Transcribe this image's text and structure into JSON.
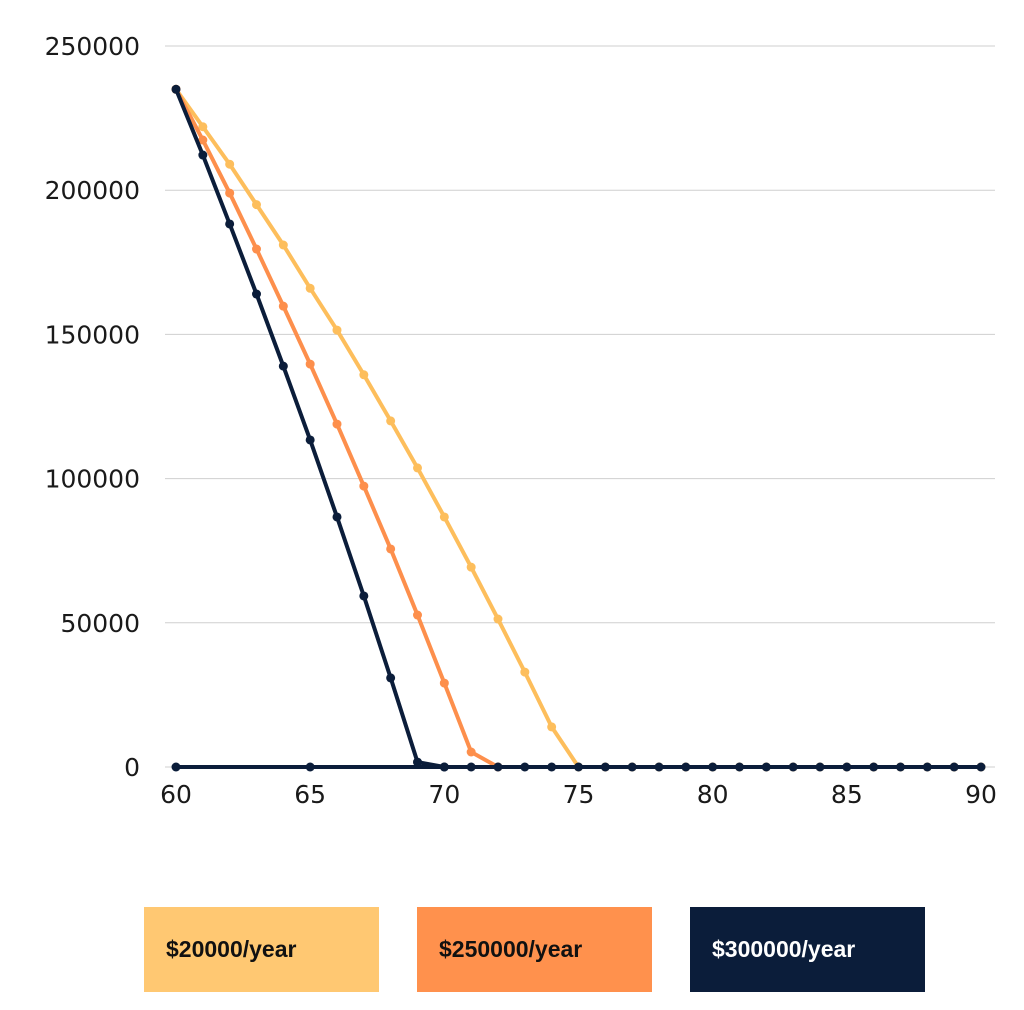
{
  "chart_data": {
    "type": "line",
    "title": "",
    "xlabel": "",
    "ylabel": "",
    "xlim": [
      60,
      90
    ],
    "ylim": [
      0,
      250000
    ],
    "x_ticks": [
      "60",
      "65",
      "70",
      "75",
      "80",
      "85",
      "90"
    ],
    "y_ticks": [
      "0",
      "50000",
      "100000",
      "150000",
      "200000",
      "250000"
    ],
    "grid": "horizontal",
    "legend_placement": "bottom",
    "series": [
      {
        "name": "$20000/year",
        "color": "#FDBE5C",
        "text_color": "#111111",
        "box_color": "#FFC872",
        "x": [
          60,
          61,
          62,
          63,
          64,
          65,
          66,
          67,
          68,
          69,
          70,
          71,
          72,
          73,
          74,
          75,
          76,
          77,
          78,
          79,
          80,
          81,
          82,
          83,
          84,
          85,
          86,
          87,
          88,
          89,
          90
        ],
        "values": [
          235000,
          222000,
          209000,
          195000,
          181000,
          166000,
          151500,
          136000,
          120000,
          103700,
          86700,
          69300,
          51300,
          32900,
          13900,
          0,
          0,
          0,
          0,
          0,
          0,
          0,
          0,
          0,
          0,
          0,
          0,
          0,
          0,
          0,
          0
        ]
      },
      {
        "name": "$250000/year",
        "color": "#FD8F4C",
        "text_color": "#111111",
        "box_color": "#FF914D",
        "x": [
          60,
          61,
          62,
          63,
          64,
          65,
          66,
          67,
          68,
          69,
          70,
          71,
          72
        ],
        "values": [
          235000,
          217400,
          199000,
          179600,
          159800,
          139700,
          118900,
          97400,
          75600,
          52700,
          29100,
          5200,
          0
        ]
      },
      {
        "name": "$300000/year",
        "color": "#0B1D3A",
        "text_color": "#ffffff",
        "box_color": "#0B1D3A",
        "x": [
          60,
          61,
          62,
          63,
          64,
          65,
          66,
          67,
          68,
          69,
          70
        ],
        "values": [
          235000,
          212200,
          188300,
          164000,
          139000,
          113400,
          86700,
          59300,
          30900,
          1700,
          0
        ]
      },
      {
        "color": "#0B1D3A",
        "x": [
          60,
          65,
          70,
          71,
          72,
          73,
          74,
          75,
          76,
          77,
          78,
          79,
          80,
          81,
          82,
          83,
          84,
          85,
          86,
          87,
          88,
          89,
          90
        ],
        "values": [
          0,
          0,
          0,
          0,
          0,
          0,
          0,
          0,
          0,
          0,
          0,
          0,
          0,
          0,
          0,
          0,
          0,
          0,
          0,
          0,
          0,
          0,
          0
        ]
      }
    ]
  }
}
